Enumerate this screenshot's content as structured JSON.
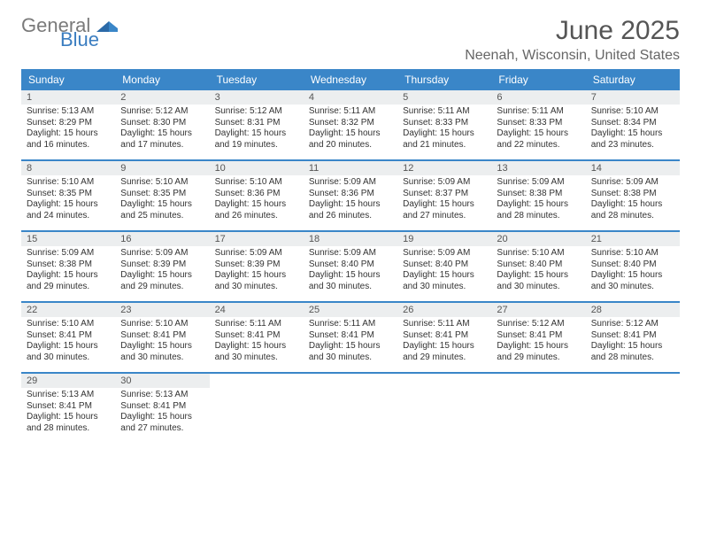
{
  "logo": {
    "word1": "General",
    "word2": "Blue"
  },
  "title": "June 2025",
  "location": "Neenah, Wisconsin, United States",
  "colors": {
    "header_bg": "#3a86c8",
    "header_text": "#ffffff",
    "daynum_bg": "#eceeef",
    "rule": "#3a86c8",
    "text": "#333333",
    "title_color": "#555555"
  },
  "day_names": [
    "Sunday",
    "Monday",
    "Tuesday",
    "Wednesday",
    "Thursday",
    "Friday",
    "Saturday"
  ],
  "weeks": [
    [
      {
        "n": "1",
        "sr": "5:13 AM",
        "ss": "8:29 PM",
        "dl": "15 hours and 16 minutes."
      },
      {
        "n": "2",
        "sr": "5:12 AM",
        "ss": "8:30 PM",
        "dl": "15 hours and 17 minutes."
      },
      {
        "n": "3",
        "sr": "5:12 AM",
        "ss": "8:31 PM",
        "dl": "15 hours and 19 minutes."
      },
      {
        "n": "4",
        "sr": "5:11 AM",
        "ss": "8:32 PM",
        "dl": "15 hours and 20 minutes."
      },
      {
        "n": "5",
        "sr": "5:11 AM",
        "ss": "8:33 PM",
        "dl": "15 hours and 21 minutes."
      },
      {
        "n": "6",
        "sr": "5:11 AM",
        "ss": "8:33 PM",
        "dl": "15 hours and 22 minutes."
      },
      {
        "n": "7",
        "sr": "5:10 AM",
        "ss": "8:34 PM",
        "dl": "15 hours and 23 minutes."
      }
    ],
    [
      {
        "n": "8",
        "sr": "5:10 AM",
        "ss": "8:35 PM",
        "dl": "15 hours and 24 minutes."
      },
      {
        "n": "9",
        "sr": "5:10 AM",
        "ss": "8:35 PM",
        "dl": "15 hours and 25 minutes."
      },
      {
        "n": "10",
        "sr": "5:10 AM",
        "ss": "8:36 PM",
        "dl": "15 hours and 26 minutes."
      },
      {
        "n": "11",
        "sr": "5:09 AM",
        "ss": "8:36 PM",
        "dl": "15 hours and 26 minutes."
      },
      {
        "n": "12",
        "sr": "5:09 AM",
        "ss": "8:37 PM",
        "dl": "15 hours and 27 minutes."
      },
      {
        "n": "13",
        "sr": "5:09 AM",
        "ss": "8:38 PM",
        "dl": "15 hours and 28 minutes."
      },
      {
        "n": "14",
        "sr": "5:09 AM",
        "ss": "8:38 PM",
        "dl": "15 hours and 28 minutes."
      }
    ],
    [
      {
        "n": "15",
        "sr": "5:09 AM",
        "ss": "8:38 PM",
        "dl": "15 hours and 29 minutes."
      },
      {
        "n": "16",
        "sr": "5:09 AM",
        "ss": "8:39 PM",
        "dl": "15 hours and 29 minutes."
      },
      {
        "n": "17",
        "sr": "5:09 AM",
        "ss": "8:39 PM",
        "dl": "15 hours and 30 minutes."
      },
      {
        "n": "18",
        "sr": "5:09 AM",
        "ss": "8:40 PM",
        "dl": "15 hours and 30 minutes."
      },
      {
        "n": "19",
        "sr": "5:09 AM",
        "ss": "8:40 PM",
        "dl": "15 hours and 30 minutes."
      },
      {
        "n": "20",
        "sr": "5:10 AM",
        "ss": "8:40 PM",
        "dl": "15 hours and 30 minutes."
      },
      {
        "n": "21",
        "sr": "5:10 AM",
        "ss": "8:40 PM",
        "dl": "15 hours and 30 minutes."
      }
    ],
    [
      {
        "n": "22",
        "sr": "5:10 AM",
        "ss": "8:41 PM",
        "dl": "15 hours and 30 minutes."
      },
      {
        "n": "23",
        "sr": "5:10 AM",
        "ss": "8:41 PM",
        "dl": "15 hours and 30 minutes."
      },
      {
        "n": "24",
        "sr": "5:11 AM",
        "ss": "8:41 PM",
        "dl": "15 hours and 30 minutes."
      },
      {
        "n": "25",
        "sr": "5:11 AM",
        "ss": "8:41 PM",
        "dl": "15 hours and 30 minutes."
      },
      {
        "n": "26",
        "sr": "5:11 AM",
        "ss": "8:41 PM",
        "dl": "15 hours and 29 minutes."
      },
      {
        "n": "27",
        "sr": "5:12 AM",
        "ss": "8:41 PM",
        "dl": "15 hours and 29 minutes."
      },
      {
        "n": "28",
        "sr": "5:12 AM",
        "ss": "8:41 PM",
        "dl": "15 hours and 28 minutes."
      }
    ],
    [
      {
        "n": "29",
        "sr": "5:13 AM",
        "ss": "8:41 PM",
        "dl": "15 hours and 28 minutes."
      },
      {
        "n": "30",
        "sr": "5:13 AM",
        "ss": "8:41 PM",
        "dl": "15 hours and 27 minutes."
      },
      null,
      null,
      null,
      null,
      null
    ]
  ],
  "labels": {
    "sunrise": "Sunrise: ",
    "sunset": "Sunset: ",
    "daylight": "Daylight: "
  }
}
